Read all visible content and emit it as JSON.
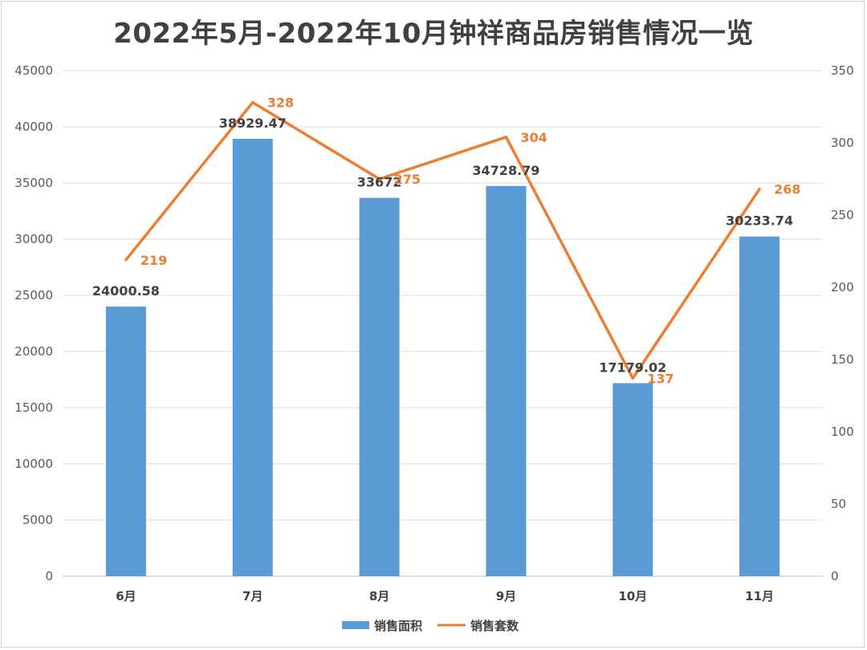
{
  "chart_data": {
    "type": "bar",
    "title": "2022年5月-2022年10月钟祥商品房销售情况一览",
    "categories": [
      "6月",
      "7月",
      "8月",
      "9月",
      "10月",
      "11月"
    ],
    "series": [
      {
        "name": "销售面积",
        "type": "bar",
        "axis": "left",
        "color": "#5B9BD5",
        "values": [
          24000.58,
          38929.47,
          33672,
          34728.79,
          17179.02,
          30233.74
        ],
        "labels": [
          "24000.58",
          "38929.47",
          "33672",
          "34728.79",
          "17179.02",
          "30233.74"
        ]
      },
      {
        "name": "销售套数",
        "type": "line",
        "axis": "right",
        "color": "#ED7D31",
        "values": [
          219,
          328,
          275,
          304,
          137,
          268
        ],
        "labels": [
          "219",
          "328",
          "275",
          "304",
          "137",
          "268"
        ]
      }
    ],
    "left_axis": {
      "min": 0,
      "max": 45000,
      "step": 5000,
      "ticks": [
        "0",
        "5000",
        "10000",
        "15000",
        "20000",
        "25000",
        "30000",
        "35000",
        "40000",
        "45000"
      ]
    },
    "right_axis": {
      "min": 0,
      "max": 350,
      "step": 50,
      "ticks": [
        "0",
        "50",
        "100",
        "150",
        "200",
        "250",
        "300",
        "350"
      ]
    },
    "grid": true,
    "legend_position": "bottom"
  }
}
